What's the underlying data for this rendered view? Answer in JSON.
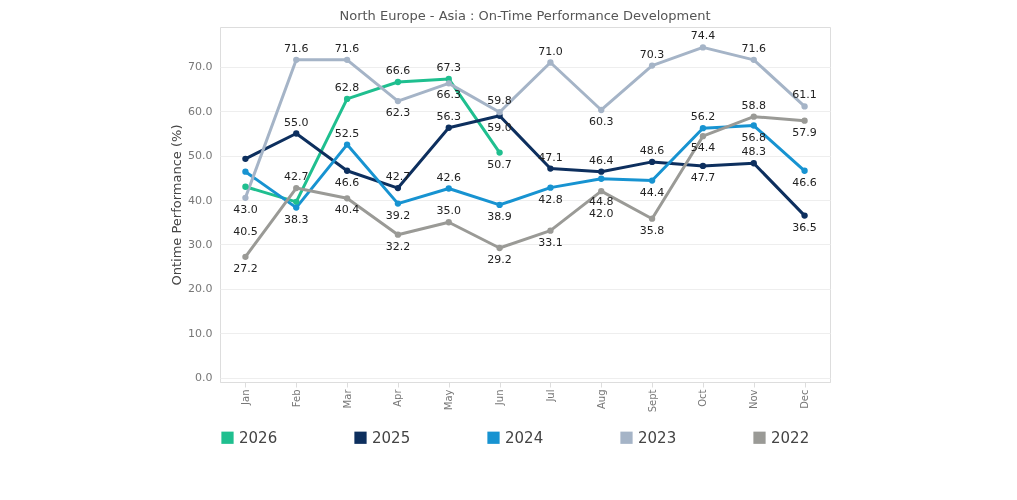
{
  "chart_data": {
    "type": "line",
    "title": "North Europe - Asia  : On-Time  Performance Development",
    "ylabel": "Ontime Performance (%)",
    "categories": [
      "Jan",
      "Feb",
      "Mar",
      "Apr",
      "May",
      "Jun",
      "Jul",
      "Aug",
      "Sept",
      "Oct",
      "Nov",
      "Dec"
    ],
    "series": [
      {
        "name": "2026",
        "color": "#1fbf8f",
        "values": [
          43.0,
          39.6,
          62.8,
          66.6,
          67.3,
          50.7,
          null,
          null,
          null,
          null,
          null,
          null
        ],
        "value_labels": [
          "43.0",
          null,
          "62.8",
          "66.6",
          "67.3",
          "50.7",
          null,
          null,
          null,
          null,
          null,
          null
        ]
      },
      {
        "name": "2025",
        "color": "#0d2f5e",
        "values": [
          49.3,
          55.0,
          46.6,
          42.7,
          56.3,
          59.0,
          47.1,
          46.4,
          48.6,
          47.7,
          48.3,
          36.5
        ],
        "value_labels": [
          null,
          "55.0",
          "46.6",
          "42.7",
          "56.3",
          "59.0",
          "47.1",
          "46.4",
          "48.6",
          "47.7",
          "48.3",
          "36.5"
        ]
      },
      {
        "name": "2024",
        "color": "#1793d1",
        "values": [
          46.4,
          38.3,
          52.5,
          39.2,
          42.6,
          38.9,
          42.8,
          44.8,
          44.4,
          56.2,
          56.8,
          46.6
        ],
        "value_labels": [
          null,
          "38.3",
          "52.5",
          "39.2",
          "42.6",
          "38.9",
          "42.8",
          "44.8",
          "44.4",
          "56.2",
          "56.8",
          "46.6"
        ]
      },
      {
        "name": "2023",
        "color": "#a5b4c7",
        "values": [
          40.5,
          71.6,
          71.6,
          62.3,
          66.3,
          59.8,
          71.0,
          60.3,
          70.3,
          74.4,
          71.6,
          61.1
        ],
        "value_labels": [
          "40.5",
          "71.6",
          "71.6",
          "62.3",
          "66.3",
          "59.8",
          "71.0",
          "60.3",
          "70.3",
          "74.4",
          "71.6",
          "61.1"
        ]
      },
      {
        "name": "2022",
        "color": "#9a9a96",
        "values": [
          27.2,
          42.7,
          40.4,
          32.2,
          35.0,
          29.2,
          33.1,
          42.0,
          35.8,
          54.4,
          58.8,
          57.9
        ],
        "value_labels": [
          "27.2",
          "42.7",
          "40.4",
          "32.2",
          "35.0",
          "29.2",
          "33.1",
          "42.0",
          "35.8",
          "54.4",
          "58.8",
          "57.9"
        ]
      }
    ],
    "ylim": [
      -1,
      79
    ],
    "yticks": [
      {
        "value": 0,
        "label": "0.0"
      },
      {
        "value": 10,
        "label": "10.0"
      },
      {
        "value": 20,
        "label": "20.0"
      },
      {
        "value": 30,
        "label": "30.0"
      },
      {
        "value": 40,
        "label": "40.0"
      },
      {
        "value": 50,
        "label": "50.0"
      },
      {
        "value": 60,
        "label": "60.0"
      },
      {
        "value": 70,
        "label": "70.0"
      }
    ],
    "grid": "y",
    "legend": "bottom",
    "marker": "circle",
    "line_style": "solid"
  }
}
